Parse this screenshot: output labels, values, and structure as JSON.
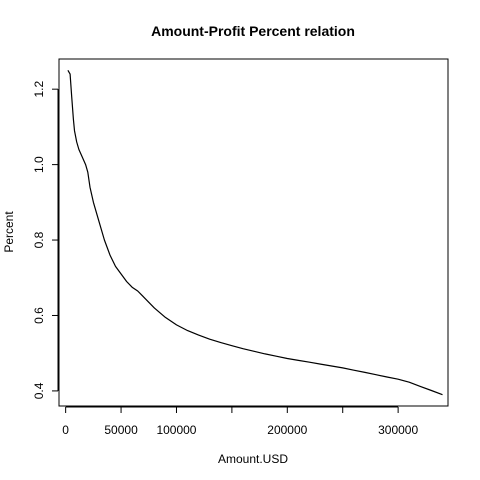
{
  "chart_data": {
    "type": "line",
    "title": "Amount-Profit Percent relation",
    "xlabel": "Amount.USD",
    "ylabel": "Percent",
    "xlim": [
      -6000,
      345000
    ],
    "ylim": [
      0.36,
      1.28
    ],
    "x_ticks": [
      0,
      50000,
      100000,
      150000,
      200000,
      250000,
      300000
    ],
    "x_tick_labels": [
      "0",
      "50000",
      "100000",
      "",
      "200000",
      "",
      "300000"
    ],
    "y_ticks": [
      0.4,
      0.6,
      0.8,
      1.0,
      1.2
    ],
    "y_tick_labels": [
      "0.4",
      "0.6",
      "0.8",
      "1.0",
      "1.2"
    ],
    "grid": false,
    "series": [
      {
        "color": "#000000",
        "x": [
          2000,
          4000,
          5500,
          7000,
          8000,
          10000,
          12000,
          15000,
          18000,
          20000,
          22000,
          25000,
          30000,
          35000,
          40000,
          45000,
          50000,
          55000,
          60000,
          65000,
          70000,
          75000,
          80000,
          90000,
          100000,
          110000,
          120000,
          130000,
          140000,
          150000,
          160000,
          170000,
          180000,
          190000,
          200000,
          210000,
          220000,
          230000,
          240000,
          250000,
          260000,
          270000,
          280000,
          290000,
          300000,
          310000,
          320000,
          330000,
          340000
        ],
        "y": [
          1.25,
          1.24,
          1.18,
          1.12,
          1.09,
          1.06,
          1.04,
          1.02,
          1.0,
          0.98,
          0.94,
          0.9,
          0.85,
          0.8,
          0.76,
          0.73,
          0.71,
          0.69,
          0.675,
          0.665,
          0.65,
          0.635,
          0.62,
          0.595,
          0.575,
          0.56,
          0.548,
          0.537,
          0.528,
          0.52,
          0.512,
          0.505,
          0.498,
          0.492,
          0.486,
          0.481,
          0.476,
          0.471,
          0.466,
          0.461,
          0.455,
          0.449,
          0.443,
          0.437,
          0.431,
          0.423,
          0.412,
          0.401,
          0.39
        ]
      }
    ]
  }
}
